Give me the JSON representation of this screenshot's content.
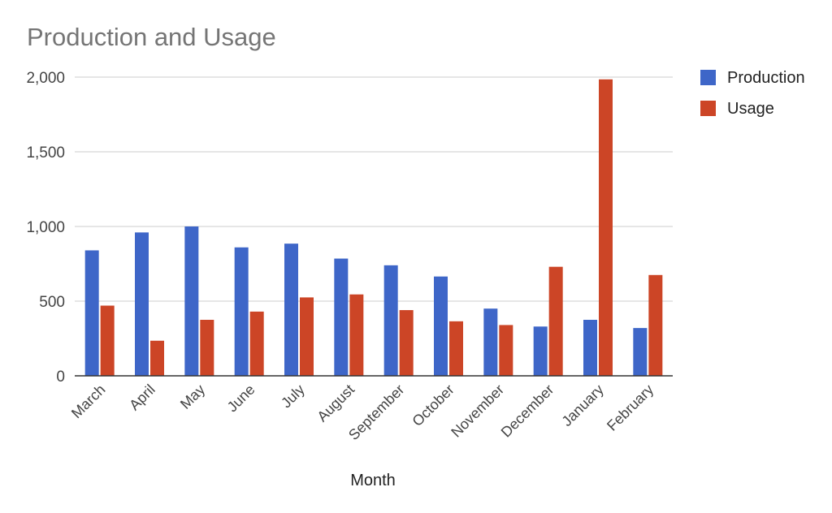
{
  "chart_data": {
    "type": "bar",
    "title": "Production and Usage",
    "xlabel": "Month",
    "ylabel": "",
    "categories": [
      "March",
      "April",
      "May",
      "June",
      "July",
      "August",
      "September",
      "October",
      "November",
      "December",
      "January",
      "February"
    ],
    "series": [
      {
        "name": "Production",
        "color": "#3e66c8",
        "values": [
          840,
          960,
          1000,
          860,
          885,
          785,
          740,
          665,
          450,
          330,
          375,
          320
        ]
      },
      {
        "name": "Usage",
        "color": "#cc4526",
        "values": [
          470,
          235,
          375,
          430,
          525,
          545,
          440,
          365,
          340,
          730,
          1985,
          675
        ]
      }
    ],
    "ylim": [
      0,
      2000
    ],
    "yticks": [
      0,
      500,
      1000,
      1500,
      2000
    ],
    "ytick_labels": [
      "0",
      "500",
      "1,000",
      "1,500",
      "2,000"
    ],
    "grid": true,
    "legend_position": "right"
  }
}
